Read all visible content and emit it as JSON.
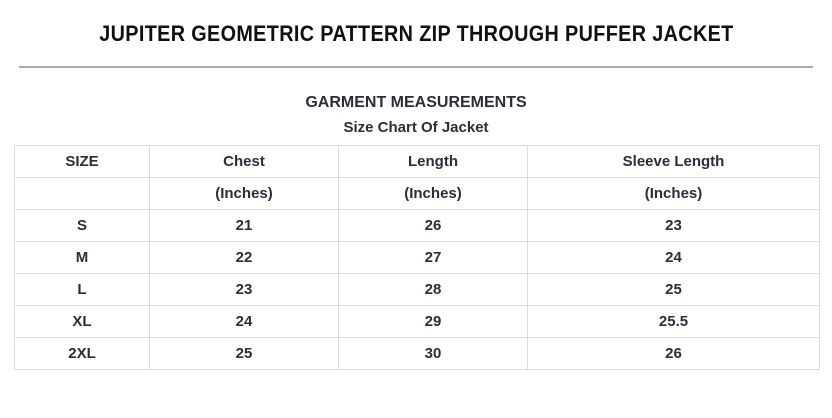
{
  "header": {
    "title": "JUPITER GEOMETRIC PATTERN ZIP THROUGH PUFFER JACKET"
  },
  "measurements": {
    "heading": "GARMENT MEASUREMENTS",
    "subheading": "Size Chart Of Jacket"
  },
  "size_chart": {
    "columns": [
      "SIZE",
      "Chest",
      "Length",
      "Sleeve Length"
    ],
    "units": [
      "",
      "(Inches)",
      "(Inches)",
      "(Inches)"
    ],
    "rows": [
      [
        "S",
        "21",
        "26",
        "23"
      ],
      [
        "M",
        "22",
        "27",
        "24"
      ],
      [
        "L",
        "23",
        "28",
        "25"
      ],
      [
        "XL",
        "24",
        "29",
        "25.5"
      ],
      [
        "2XL",
        "25",
        "30",
        "26"
      ]
    ]
  },
  "colors": {
    "title_text": "#101010",
    "body_text": "#2b2d3a",
    "table_border": "#dcdcdc",
    "divider": "#a9a9a9",
    "background": "#ffffff"
  }
}
